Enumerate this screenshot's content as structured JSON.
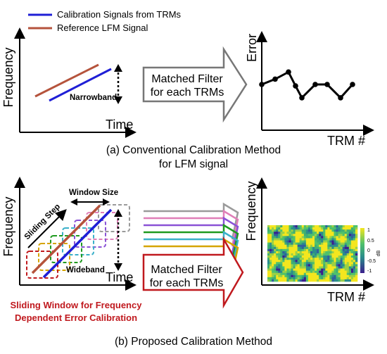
{
  "panel_a": {
    "legend": {
      "calibration": "Calibration Signals from TRMs",
      "reference": "Reference LFM Signal"
    },
    "y_label": "Frequency",
    "x_label": "Time",
    "narrowband_label": "Narrowband",
    "filter_line1": "Matched Filter",
    "filter_line2": "for each TRMs",
    "error_y_label": "Error",
    "error_x_label": "TRM #",
    "caption_line1": "(a) Conventional Calibration Method",
    "caption_line2": "for LFM signal",
    "error_values": [
      0.0,
      0.18,
      0.42,
      -0.05,
      -0.45,
      0.0,
      0.0,
      -0.45,
      0.0
    ]
  },
  "panel_b": {
    "y_label": "Frequency",
    "x_label": "Time",
    "window_size_label": "Window Size",
    "sliding_step_label": "Sliding Step",
    "wideband_label": "Wideband",
    "red_note_line1": "Sliding Window for Frequency",
    "red_note_line2": "Dependent Error Calibration",
    "filter_line1": "Matched Filter",
    "filter_line2": "for each TRMs",
    "heatmap_y_label": "Frequency",
    "heatmap_x_label": "TRM #",
    "colorbar_ticks": [
      "1",
      "0.5",
      "0",
      "-0.5",
      "-1"
    ],
    "colorbar_unit": "dB",
    "caption": "(b) Proposed Calibration Method"
  },
  "colors": {
    "calibration_signal": "#1f1fd6",
    "reference_signal": "#b5533c",
    "red_note": "#c0191e",
    "window_colors": [
      "#c0191e",
      "#d5a400",
      "#1f9a1f",
      "#3ab0c9",
      "#8a52d6",
      "#e07fb8",
      "#9a9a9a"
    ]
  }
}
